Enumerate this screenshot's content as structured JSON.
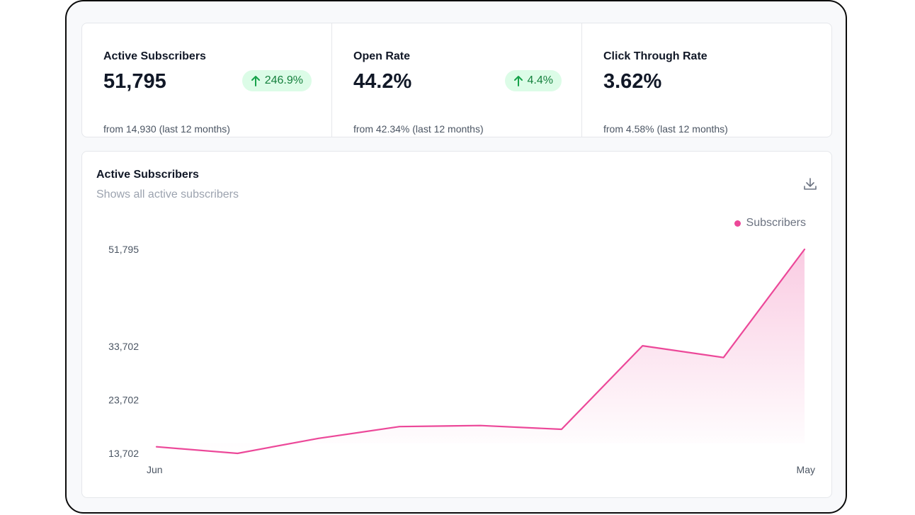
{
  "stats": [
    {
      "label": "Active Subscribers",
      "value": "51,795",
      "change": "246.9%",
      "sub": "from 14,930 (last 12 months)"
    },
    {
      "label": "Open Rate",
      "value": "44.2%",
      "change": "4.4%",
      "sub": "from 42.34% (last 12 months)"
    },
    {
      "label": "Click Through Rate",
      "value": "3.62%",
      "change": null,
      "sub": "from 4.58% (last 12 months)"
    }
  ],
  "card": {
    "title": "Active Subscribers",
    "subtitle": "Shows all active subscribers",
    "download_icon": "download-icon"
  },
  "colors": {
    "accent": "#ec4899",
    "badge_bg": "#dcfce7",
    "badge_text": "#15803d"
  },
  "chart_data": {
    "type": "area",
    "title": "Active Subscribers",
    "x_labels_shown": [
      "Jun",
      "May"
    ],
    "y_ticks": [
      13702,
      23702,
      33702,
      51795
    ],
    "y_tick_labels": [
      "13,702",
      "23,702",
      "33,702",
      "51,795"
    ],
    "ylim": [
      13702,
      51795
    ],
    "legend": "top-right",
    "grid": false,
    "series": [
      {
        "name": "Subscribers",
        "color": "#ec4899",
        "values": [
          14930,
          13700,
          16500,
          18700,
          18900,
          18200,
          33800,
          31600,
          51795
        ]
      }
    ]
  }
}
